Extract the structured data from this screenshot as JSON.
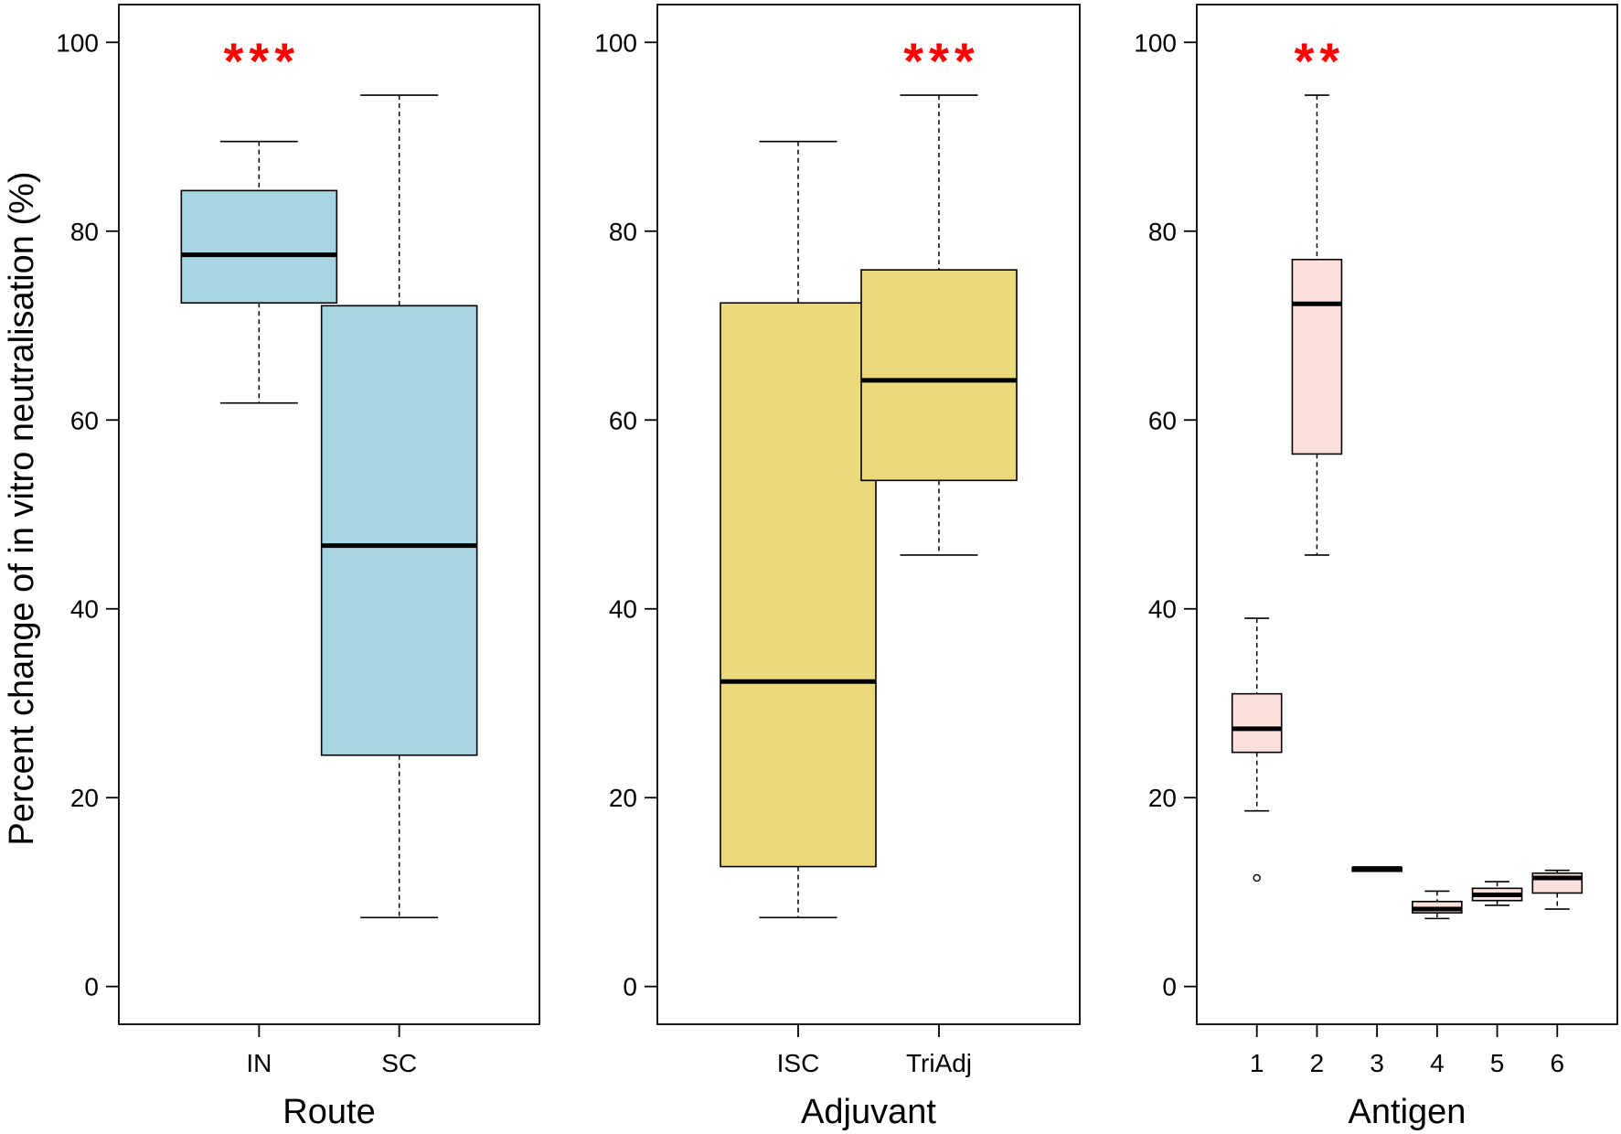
{
  "chart_data": [
    {
      "type": "box",
      "xlabel": "Route",
      "ylabel": "Percent change of in vitro neutralisation (%)",
      "ylim": [
        -4,
        104
      ],
      "yticks": [
        0,
        20,
        40,
        60,
        80,
        100
      ],
      "box_color": "#a8d5e4",
      "significance": {
        "category": "IN",
        "label": "***",
        "color": "#ff0000"
      },
      "categories": [
        "IN",
        "SC"
      ],
      "boxes": [
        {
          "category": "IN",
          "whisker_low": 61.8,
          "q1": 72.4,
          "median": 77.5,
          "q3": 84.3,
          "whisker_high": 89.5,
          "outliers": []
        },
        {
          "category": "SC",
          "whisker_low": 7.3,
          "q1": 24.5,
          "median": 46.7,
          "q3": 72.1,
          "whisker_high": 94.4,
          "outliers": []
        }
      ]
    },
    {
      "type": "box",
      "xlabel": "Adjuvant",
      "ylim": [
        -4,
        104
      ],
      "yticks": [
        0,
        20,
        40,
        60,
        80,
        100
      ],
      "box_color": "#ebd97b",
      "significance": {
        "category": "TriAdj",
        "label": "***",
        "color": "#ff0000"
      },
      "categories": [
        "ISC",
        "TriAdj"
      ],
      "boxes": [
        {
          "category": "ISC",
          "whisker_low": 7.3,
          "q1": 12.7,
          "median": 32.3,
          "q3": 72.4,
          "whisker_high": 89.5,
          "outliers": []
        },
        {
          "category": "TriAdj",
          "whisker_low": 45.7,
          "q1": 53.6,
          "median": 64.2,
          "q3": 75.9,
          "whisker_high": 94.4,
          "outliers": []
        }
      ]
    },
    {
      "type": "box",
      "xlabel": "Antigen",
      "ylim": [
        -4,
        104
      ],
      "yticks": [
        0,
        20,
        40,
        60,
        80,
        100
      ],
      "box_color": "#fde0dc",
      "significance": {
        "category": "2",
        "label": "**",
        "color": "#ff0000"
      },
      "categories": [
        "1",
        "2",
        "3",
        "4",
        "5",
        "6"
      ],
      "boxes": [
        {
          "category": "1",
          "whisker_low": 18.6,
          "q1": 24.8,
          "median": 27.3,
          "q3": 31.0,
          "whisker_high": 39.0,
          "outliers": [
            11.5
          ]
        },
        {
          "category": "2",
          "whisker_low": 45.7,
          "q1": 56.4,
          "median": 72.3,
          "q3": 77.0,
          "whisker_high": 94.4,
          "outliers": []
        },
        {
          "category": "3",
          "whisker_low": 12.2,
          "q1": 12.2,
          "median": 12.5,
          "q3": 12.6,
          "whisker_high": 12.6,
          "outliers": []
        },
        {
          "category": "4",
          "whisker_low": 7.2,
          "q1": 7.8,
          "median": 8.2,
          "q3": 9.0,
          "whisker_high": 10.1,
          "outliers": []
        },
        {
          "category": "5",
          "whisker_low": 8.6,
          "q1": 9.1,
          "median": 9.7,
          "q3": 10.4,
          "whisker_high": 11.1,
          "outliers": []
        },
        {
          "category": "6",
          "whisker_low": 8.2,
          "q1": 9.9,
          "median": 11.5,
          "q3": 12.0,
          "whisker_high": 12.3,
          "outliers": []
        }
      ]
    }
  ]
}
